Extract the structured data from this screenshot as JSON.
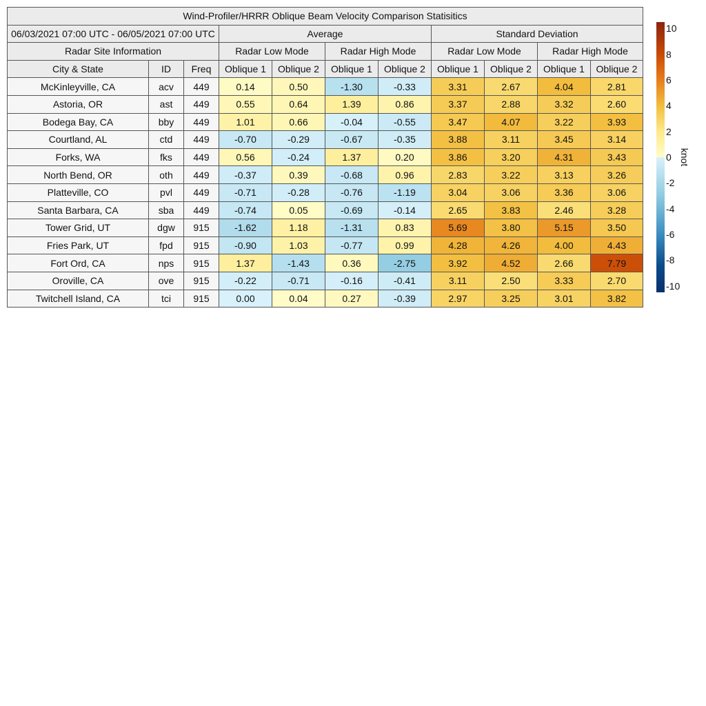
{
  "chart_data": {
    "type": "table",
    "title": "Wind-Profiler/HRRR Oblique Beam Velocity Comparison Statisitics",
    "date_range": "06/03/2021 07:00 UTC - 06/05/2021 07:00 UTC",
    "groups": [
      "Average",
      "Standard Deviation"
    ],
    "site_header": "Radar Site Information",
    "modes": [
      "Radar Low Mode",
      "Radar High Mode",
      "Radar Low Mode",
      "Radar High Mode"
    ],
    "columns": [
      "City & State",
      "ID",
      "Freq",
      "Oblique 1",
      "Oblique 2",
      "Oblique 1",
      "Oblique 2",
      "Oblique 1",
      "Oblique 2",
      "Oblique 1",
      "Oblique 2"
    ],
    "rows": [
      {
        "city": "McKinleyville, CA",
        "id": "acv",
        "freq": "449",
        "values": [
          "0.14",
          "0.50",
          "-1.30",
          "-0.33",
          "3.31",
          "2.67",
          "4.04",
          "2.81"
        ]
      },
      {
        "city": "Astoria, OR",
        "id": "ast",
        "freq": "449",
        "values": [
          "0.55",
          "0.64",
          "1.39",
          "0.86",
          "3.37",
          "2.88",
          "3.32",
          "2.60"
        ]
      },
      {
        "city": "Bodega Bay, CA",
        "id": "bby",
        "freq": "449",
        "values": [
          "1.01",
          "0.66",
          "-0.04",
          "-0.55",
          "3.47",
          "4.07",
          "3.22",
          "3.93"
        ]
      },
      {
        "city": "Courtland, AL",
        "id": "ctd",
        "freq": "449",
        "values": [
          "-0.70",
          "-0.29",
          "-0.67",
          "-0.35",
          "3.88",
          "3.11",
          "3.45",
          "3.14"
        ]
      },
      {
        "city": "Forks, WA",
        "id": "fks",
        "freq": "449",
        "values": [
          "0.56",
          "-0.24",
          "1.37",
          "0.20",
          "3.86",
          "3.20",
          "4.31",
          "3.43"
        ]
      },
      {
        "city": "North Bend, OR",
        "id": "oth",
        "freq": "449",
        "values": [
          "-0.37",
          "0.39",
          "-0.68",
          "0.96",
          "2.83",
          "3.22",
          "3.13",
          "3.26"
        ]
      },
      {
        "city": "Platteville, CO",
        "id": "pvl",
        "freq": "449",
        "values": [
          "-0.71",
          "-0.28",
          "-0.76",
          "-1.19",
          "3.04",
          "3.06",
          "3.36",
          "3.06"
        ]
      },
      {
        "city": "Santa Barbara, CA",
        "id": "sba",
        "freq": "449",
        "values": [
          "-0.74",
          "0.05",
          "-0.69",
          "-0.14",
          "2.65",
          "3.83",
          "2.46",
          "3.28"
        ]
      },
      {
        "city": "Tower Grid, UT",
        "id": "dgw",
        "freq": "915",
        "values": [
          "-1.62",
          "1.18",
          "-1.31",
          "0.83",
          "5.69",
          "3.80",
          "5.15",
          "3.50"
        ]
      },
      {
        "city": "Fries Park, UT",
        "id": "fpd",
        "freq": "915",
        "values": [
          "-0.90",
          "1.03",
          "-0.77",
          "0.99",
          "4.28",
          "4.26",
          "4.00",
          "4.43"
        ]
      },
      {
        "city": "Fort Ord, CA",
        "id": "nps",
        "freq": "915",
        "values": [
          "1.37",
          "-1.43",
          "0.36",
          "-2.75",
          "3.92",
          "4.52",
          "2.66",
          "7.79"
        ]
      },
      {
        "city": "Oroville, CA",
        "id": "ove",
        "freq": "915",
        "values": [
          "-0.22",
          "-0.71",
          "-0.16",
          "-0.41",
          "3.11",
          "2.50",
          "3.33",
          "2.70"
        ]
      },
      {
        "city": "Twitchell Island, CA",
        "id": "tci",
        "freq": "915",
        "values": [
          "0.00",
          "0.04",
          "0.27",
          "-0.39",
          "2.97",
          "3.25",
          "3.01",
          "3.82"
        ]
      }
    ],
    "colorbar": {
      "label": "knot",
      "range": [
        -10.5,
        10.5
      ],
      "ticks": [
        "10",
        "8",
        "6",
        "4",
        "2",
        "0",
        "-2",
        "-4",
        "-6",
        "-8",
        "-10"
      ]
    }
  }
}
